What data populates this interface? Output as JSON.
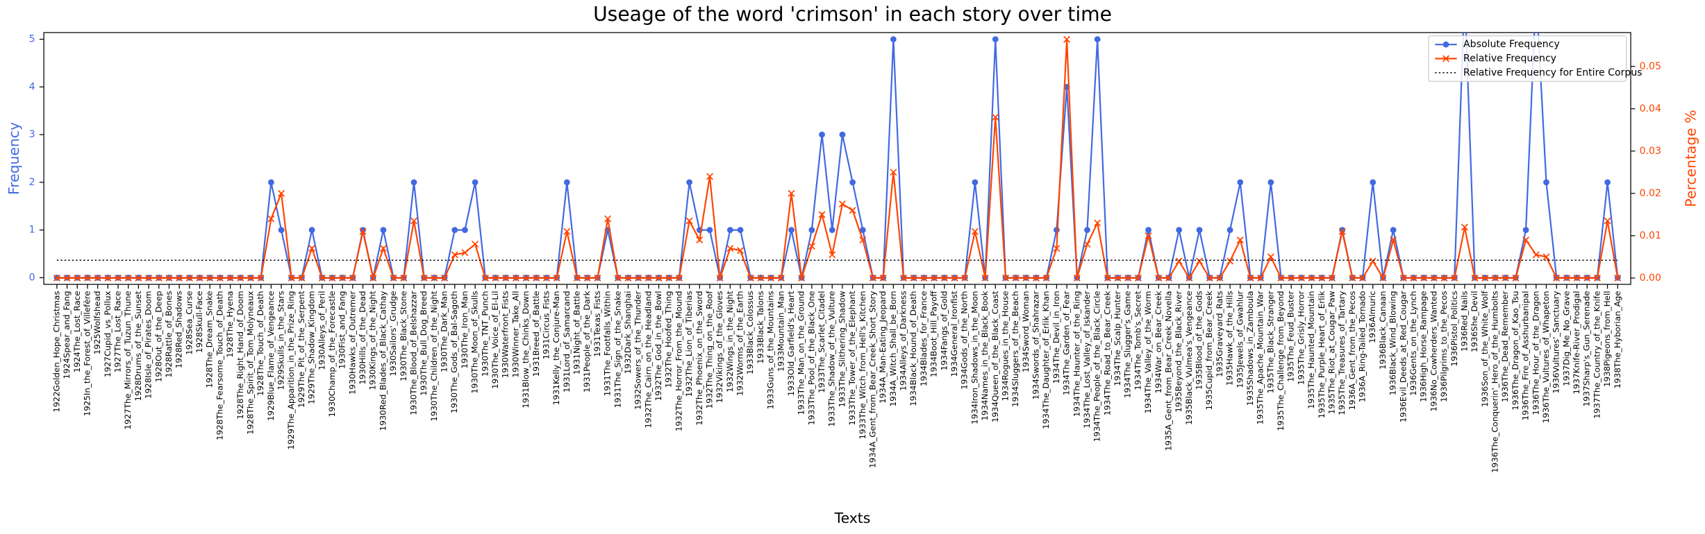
{
  "chart_data": {
    "type": "line",
    "title": "Useage of the word 'crimson' in each story over time",
    "x_label": "Texts",
    "y_label": "Frequency",
    "y2_label": "Percentage %",
    "categories": [
      "1922Golden_Hope_Christmas",
      "1924Spear_and_Fang",
      "1924The_Lost_Race",
      "1925In_the_Forest_of_Villefère",
      "1925Wolfshead",
      "1927Cupid_vs_Pollux",
      "1927The_Lost_Race",
      "1927The_Mirrors_of_Tuzun_Thune",
      "1928Drums_of_the_Sunset",
      "1928Isle_of_Pirates_Doom",
      "1928Out_of_the_Deep",
      "1928Rattle_of_Bones",
      "1928Red_Shadows",
      "1928Sea_Curse",
      "1928Skull-Face",
      "1928The_Dream_Snake",
      "1928The_Fearsome_Touch_of_Death",
      "1928The_Hyena",
      "1928The_Right_Hand_of_Doom",
      "1928The_Spirit_of_Tom_Molyneaux",
      "1928The_Touch_of_Death",
      "1929Blue_Flame_of_Vengeance",
      "1929Skulls_in_the_Stars",
      "1929The_Apparition_in_the_Prize_Ring",
      "1929The_Pit_of_the_Serpent",
      "1929The_Shadow_Kingdom",
      "1930Alleys_of_Peril",
      "1930Champ_of_the_Forecastle",
      "1930Fist_and_Fang",
      "1930Hawks_of_Outremer",
      "1930Hills_of_the_Dead",
      "1930Kings_of_the_Night",
      "1930Red_Blades_of_Black_Cathay",
      "1930Sailors'_Grudge",
      "1930The_Black_Stone",
      "1930The_Blood_of_Belshazzar",
      "1930The_Bull_Dog_Breed",
      "1930The_Children_of_the_Night",
      "1930The_Dark_Man",
      "1930The_Gods_of_Bal-Sagoth",
      "1930The_Iron_Man",
      "1930The_Moon_of_Skulls",
      "1930The_TNT_Punch",
      "1930The_Voice_of_El-Lil",
      "1930Waterfront_Fists",
      "1930Winner_Take_All",
      "1931Blow_the_Chinks_Down",
      "1931Breed_of_Battle",
      "1931Circus_Fists",
      "1931Kelly_the_Conjure-Man",
      "1931Lord_of_Samarcand",
      "1931Night_of_Battle",
      "1931People_of_the_Dark",
      "1931Texas_Fists",
      "1931The_Footfalls_Within",
      "1931The_Sign_of_the_Snake",
      "1932Dark_Shanghai",
      "1932Sowers_of_the_Thunder",
      "1932The_Cairn_on_the_Headland",
      "1932The_God_in_the_Bowl",
      "1932The_Hoofed_Thing",
      "1932The_Horror_From_the_Mound",
      "1932The_Lion_of_Tiberias",
      "1932The_Phoenix_on_the_Sword",
      "1932The_Thing_on_the_Roof",
      "1932Vikings_of_the_Gloves",
      "1932Wings_in_the_Night",
      "1932Worms_of_the_Earth",
      "1933Black_Colossus",
      "1933Black_Talons",
      "1933Guns_of_the_Mountains",
      "1933Mountain_Man",
      "1933Old_Garfield's_Heart",
      "1933The_Man_on_the_Ground",
      "1933The_Pool_of_the_Black_One",
      "1933The_Scarlet_Citadel",
      "1933The_Shadow_of_the_Vulture",
      "1933The_Slithering_Shadow",
      "1933The_Tower_of_the_Elephant",
      "1933The_Witch_from_Hell's_Kitchen",
      "1934A_Gent_from_Bear_Creek_Short_Story",
      "1934A_Man-Eating_Jeopard",
      "1934A_Witch_Shall_be_Born",
      "1934Alleys_of_Darkness",
      "1934Black_Hound_of_Death",
      "1934Blades_for_France",
      "1934Boot_Hill_Payoff",
      "1934Fangs_of_Gold",
      "1934General_Ironfist",
      "1934Gods_of_the_North",
      "1934Iron_Shadows_in_the_Moon",
      "1934Names_in_the_Black_Book",
      "1934Queen_of_the_Black_Coast",
      "1934Rogues_in_the_House",
      "1934Sluggers_of_the_Beach",
      "1934Sword_Woman",
      "1934Swords_of_Shahrazar",
      "1934The_Daughter_of_Erlik_Khan",
      "1934The_Devil_in_Iron",
      "1934The_Garden_of_Fear",
      "1934The_Haunter_of_the_Ring",
      "1934The_Lost_Valley_of_Iskander",
      "1934The_People_of_the_Black_Circle",
      "1934The_Road_to_Bear_Creek",
      "1934The_Scalp_Hunter",
      "1934The_Slugger's_Game",
      "1934The_Tomb's_Secret",
      "1934The_Valley_of_the_Worm",
      "1934War_on_Bear_Creek",
      "1935A_Gent_from_Bear_Creek_Novella",
      "1935Beyond_the_Black_River",
      "1935Black_Vulmea's_Vengeance",
      "1935Blood_of_the_Gods",
      "1935Cupid_from_Bear_Creek",
      "1935Graveyard_Rats",
      "1935Hawk_of_the_Hills",
      "1935Jewels_of_Gwahlur",
      "1935Shadows_in_Zamboula",
      "1935The_Apache_Mountain_War",
      "1935The_Black_Stranger",
      "1935The_Challenge_from_Beyond",
      "1935The_Feud_Buster",
      "1935The_Grisly_Horror",
      "1935The_Haunted_Mountain",
      "1935The_Purple_Heart_of_Erlik",
      "1935The_Riot_at_Cougar_Paw",
      "1935The_Treasures_of_Tartary",
      "1936A_Gent_from_the_Pecos",
      "1936A_Ring-Tailed_Tornado",
      "1936Almuric",
      "1936Black_Canaan",
      "1936Black_Wind_Blowing",
      "1936Evil_Deeds_at_Red_Cougar",
      "1936Gents_on_the_Lynch",
      "1936High_Horse_Rampage",
      "1936No_Cowherders_Wanted",
      "1936Pilgrims_to_the_Pecos",
      "1936Pistol_Politics",
      "1936Red_Nails",
      "1936She_Devil",
      "1936Son_of_the_White_Wolf",
      "1936The_Conquerin'_Hero_of_the_Humbolts",
      "1936The_Dead_Remember",
      "1936The_Dragon_of_Kao_Tsu",
      "1936The_Fire_of_Asshurbanipal",
      "1936The_Hour_of_the_Dragon",
      "1936The_Vultures_of_Whapeton",
      "1936Vultures'_Sanctuary",
      "1937Dig_Me_No_Grave",
      "1937Knife-River_Prodigal",
      "1937Sharp's_Gun_Serenade",
      "1937The_Country_of_the_Knife",
      "1938Pigeons_from_Hell",
      "1938The_Hyborian_Age"
    ],
    "series": [
      {
        "name": "Absolute Frequency",
        "color": "#4169e1",
        "marker": "o",
        "axis": "y",
        "values": [
          0,
          0,
          0,
          0,
          0,
          0,
          0,
          0,
          0,
          0,
          0,
          0,
          0,
          0,
          0,
          0,
          0,
          0,
          0,
          0,
          0,
          2,
          1,
          0,
          0,
          1,
          0,
          0,
          0,
          0,
          1,
          0,
          1,
          0,
          0,
          2,
          0,
          0,
          0,
          1,
          1,
          2,
          0,
          0,
          0,
          0,
          0,
          0,
          0,
          0,
          2,
          0,
          0,
          0,
          1,
          0,
          0,
          0,
          0,
          0,
          0,
          0,
          2,
          1,
          1,
          0,
          1,
          1,
          0,
          0,
          0,
          0,
          1,
          0,
          1,
          3,
          1,
          3,
          2,
          1,
          0,
          0,
          5,
          0,
          0,
          0,
          0,
          0,
          0,
          0,
          2,
          0,
          5,
          0,
          0,
          0,
          0,
          0,
          1,
          4,
          0,
          1,
          5,
          0,
          0,
          0,
          0,
          1,
          0,
          0,
          1,
          0,
          1,
          0,
          0,
          1,
          2,
          0,
          0,
          2,
          0,
          0,
          0,
          0,
          0,
          0,
          1,
          0,
          0,
          2,
          0,
          1,
          0,
          0,
          0,
          0,
          0,
          0,
          6,
          0,
          0,
          0,
          0,
          0,
          1,
          6,
          2,
          0,
          0,
          0,
          0,
          0,
          2,
          0
        ]
      },
      {
        "name": "Relative Frequency",
        "color": "#ff4500",
        "marker": "x",
        "axis": "y2",
        "values": [
          0,
          0,
          0,
          0,
          0,
          0,
          0,
          0,
          0,
          0,
          0,
          0,
          0,
          0,
          0,
          0,
          0,
          0,
          0,
          0,
          0,
          0.014,
          0.02,
          0,
          0,
          0.007,
          0,
          0,
          0,
          0,
          0.011,
          0,
          0.007,
          0,
          0,
          0.0135,
          0,
          0,
          0,
          0.0055,
          0.006,
          0.008,
          0,
          0,
          0,
          0,
          0,
          0,
          0,
          0,
          0.011,
          0,
          0,
          0,
          0.014,
          0,
          0,
          0,
          0,
          0,
          0,
          0,
          0.0135,
          0.009,
          0.024,
          0,
          0.007,
          0.0065,
          0,
          0,
          0,
          0,
          0.02,
          0,
          0.0075,
          0.015,
          0.0055,
          0.0175,
          0.016,
          0.009,
          0,
          0,
          0.025,
          0,
          0,
          0,
          0,
          0,
          0,
          0,
          0.011,
          0,
          0.038,
          0,
          0,
          0,
          0,
          0,
          0.007,
          0.0564,
          0,
          0.008,
          0.013,
          0,
          0,
          0,
          0,
          0.01,
          0,
          0,
          0.004,
          0,
          0.004,
          0,
          0,
          0.004,
          0.009,
          0,
          0,
          0.005,
          0,
          0,
          0,
          0,
          0,
          0,
          0.011,
          0,
          0,
          0.004,
          0,
          0.009,
          0,
          0,
          0,
          0,
          0,
          0,
          0.012,
          0,
          0,
          0,
          0,
          0,
          0.009,
          0.0055,
          0.005,
          0,
          0,
          0,
          0,
          0,
          0.0135,
          0
        ]
      },
      {
        "name": "Relative Frequency for Entire Corpus",
        "color": "#000000",
        "dash": "dotted",
        "axis": "y2",
        "value": 0.0042
      }
    ],
    "ylim": [
      -0.14,
      5.14
    ],
    "yticks": [
      0,
      1,
      2,
      3,
      4,
      5
    ],
    "y2lim": [
      -0.0015,
      0.058
    ],
    "y2ticks": [
      {
        "value": 0,
        "label": "0.00"
      },
      {
        "value": 0.01,
        "label": "0.01"
      },
      {
        "value": 0.02,
        "label": "0.02"
      },
      {
        "value": 0.03,
        "label": "0.03"
      },
      {
        "value": 0.04,
        "label": "0.04"
      },
      {
        "value": 0.05,
        "label": "0.05"
      }
    ],
    "grid": false,
    "legend": "upper right"
  }
}
